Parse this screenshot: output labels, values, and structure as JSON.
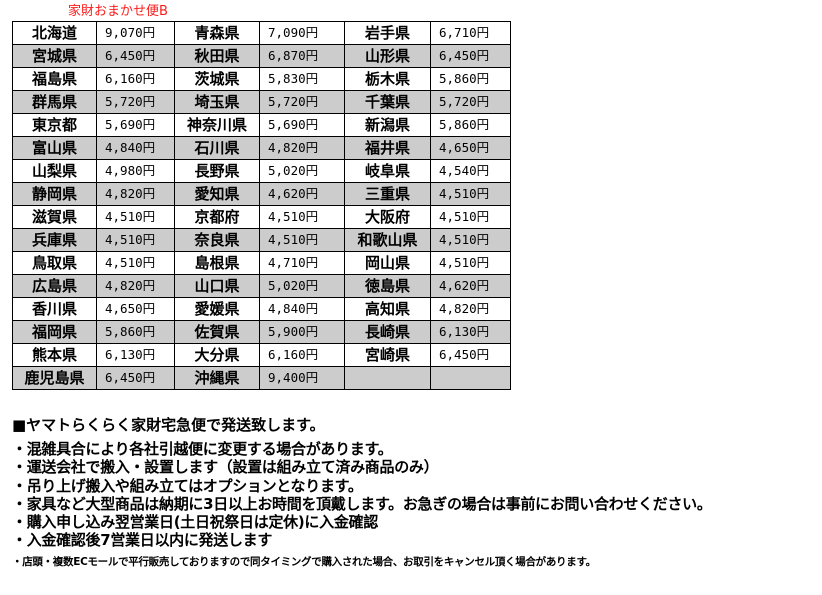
{
  "title": "家財おまかせ便B",
  "rows": [
    [
      [
        "北海道",
        "9,070円"
      ],
      [
        "青森県",
        "7,090円"
      ],
      [
        "岩手県",
        "6,710円"
      ]
    ],
    [
      [
        "宮城県",
        "6,450円"
      ],
      [
        "秋田県",
        "6,870円"
      ],
      [
        "山形県",
        "6,450円"
      ]
    ],
    [
      [
        "福島県",
        "6,160円"
      ],
      [
        "茨城県",
        "5,830円"
      ],
      [
        "栃木県",
        "5,860円"
      ]
    ],
    [
      [
        "群馬県",
        "5,720円"
      ],
      [
        "埼玉県",
        "5,720円"
      ],
      [
        "千葉県",
        "5,720円"
      ]
    ],
    [
      [
        "東京都",
        "5,690円"
      ],
      [
        "神奈川県",
        "5,690円"
      ],
      [
        "新潟県",
        "5,860円"
      ]
    ],
    [
      [
        "富山県",
        "4,840円"
      ],
      [
        "石川県",
        "4,820円"
      ],
      [
        "福井県",
        "4,650円"
      ]
    ],
    [
      [
        "山梨県",
        "4,980円"
      ],
      [
        "長野県",
        "5,020円"
      ],
      [
        "岐阜県",
        "4,540円"
      ]
    ],
    [
      [
        "静岡県",
        "4,820円"
      ],
      [
        "愛知県",
        "4,620円"
      ],
      [
        "三重県",
        "4,510円"
      ]
    ],
    [
      [
        "滋賀県",
        "4,510円"
      ],
      [
        "京都府",
        "4,510円"
      ],
      [
        "大阪府",
        "4,510円"
      ]
    ],
    [
      [
        "兵庫県",
        "4,510円"
      ],
      [
        "奈良県",
        "4,510円"
      ],
      [
        "和歌山県",
        "4,510円"
      ]
    ],
    [
      [
        "鳥取県",
        "4,510円"
      ],
      [
        "島根県",
        "4,710円"
      ],
      [
        "岡山県",
        "4,510円"
      ]
    ],
    [
      [
        "広島県",
        "4,820円"
      ],
      [
        "山口県",
        "5,020円"
      ],
      [
        "徳島県",
        "4,620円"
      ]
    ],
    [
      [
        "香川県",
        "4,650円"
      ],
      [
        "愛媛県",
        "4,840円"
      ],
      [
        "高知県",
        "4,820円"
      ]
    ],
    [
      [
        "福岡県",
        "5,860円"
      ],
      [
        "佐賀県",
        "5,900円"
      ],
      [
        "長崎県",
        "6,130円"
      ]
    ],
    [
      [
        "熊本県",
        "6,130円"
      ],
      [
        "大分県",
        "6,160円"
      ],
      [
        "宮崎県",
        "6,450円"
      ]
    ],
    [
      [
        "鹿児島県",
        "6,450円"
      ],
      [
        "沖縄県",
        "9,400円"
      ],
      [
        "",
        ""
      ]
    ]
  ],
  "notes": {
    "heading": "■ヤマトらくらく家財宅急便で発送致します。",
    "bullets": [
      "・混雑具合により各社引越便に変更する場合があります。",
      "・運送会社で搬入・設置します（設置は組み立て済み商品のみ）",
      "・吊り上げ搬入や組み立てはオプションとなります。",
      "・家具など大型商品は納期に3日以上お時間を頂戴します。お急ぎの場合は事前にお問い合わせください。",
      "・購入申し込み翌営業日(土日祝祭日は定休)に入金確認",
      "・入金確認後7営業日以内に発送します"
    ],
    "small": "・店頭・複数ECモールで平行販売しておりますので同タイミングで購入された場合、お取引をキャンセル頂く場合があります。"
  },
  "colors": {
    "title": "#ff1a1a",
    "row_alt": "#cccccc"
  }
}
